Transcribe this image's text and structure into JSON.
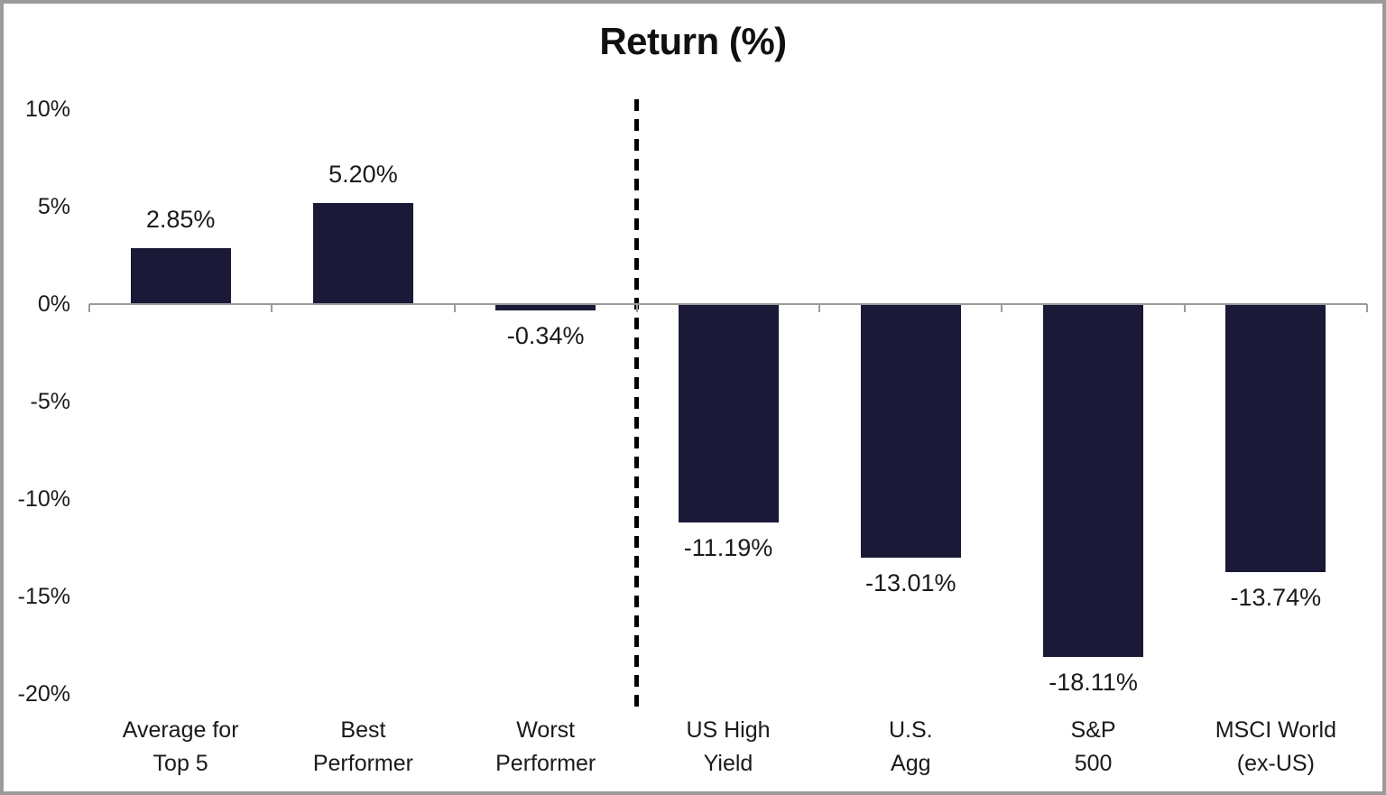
{
  "page": {
    "title": "Return (%)"
  },
  "chart_data": {
    "type": "bar",
    "title": "Return (%)",
    "categories": [
      "Average for Top 5",
      "Best Performer",
      "Worst Performer",
      "US High Yield",
      "U.S. Agg",
      "S&P 500",
      "MSCI World (ex-US)"
    ],
    "category_lines": [
      [
        "Average for",
        "Top 5"
      ],
      [
        "Best",
        "Performer"
      ],
      [
        "Worst",
        "Performer"
      ],
      [
        "US High",
        "Yield"
      ],
      [
        "U.S.",
        "Agg"
      ],
      [
        "S&P",
        "500"
      ],
      [
        "MSCI World",
        "(ex-US)"
      ]
    ],
    "values": [
      2.85,
      5.2,
      -0.34,
      -11.19,
      -13.01,
      -18.11,
      -13.74
    ],
    "value_labels": [
      "2.85%",
      "5.20%",
      "-0.34%",
      "-11.19%",
      "-13.01%",
      "-18.11%",
      "-13.74%"
    ],
    "xlabel": "",
    "ylabel": "",
    "y_ticks": [
      10,
      5,
      0,
      -5,
      -10,
      -15,
      -20
    ],
    "y_tick_labels": [
      "10%",
      "5%",
      "0%",
      "-5%",
      "-10%",
      "-15%",
      "-20%"
    ],
    "ylim": [
      -20.5,
      10.5
    ],
    "grid": false,
    "legend": "none",
    "separator_after_category": 3,
    "separator_style": "dashed-vertical-line",
    "colors": {
      "bar": "#1a1938",
      "axis": "#9b9b9b",
      "separator": "#000000",
      "text": "#1a1a1a",
      "frame_border": "#9b9b9b",
      "background": "#ffffff"
    }
  }
}
